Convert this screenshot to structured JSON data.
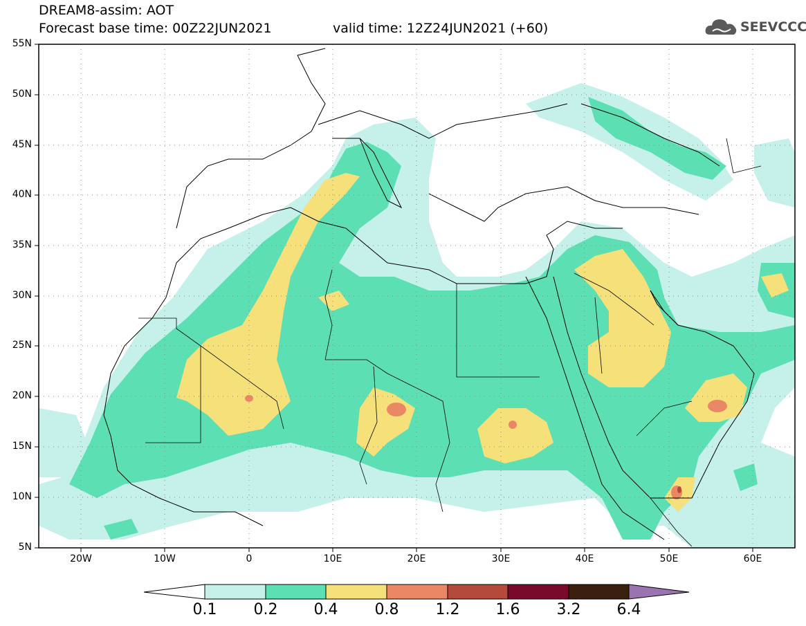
{
  "header": {
    "title_line1": "DREAM8-assim: AOT",
    "title_line2": "Forecast base time: 00Z22JUN2021",
    "valid_time": "valid time: 12Z24JUN2021 (+60)"
  },
  "logo": {
    "text": "SEEVCCC",
    "icon": "cloud-icon"
  },
  "map": {
    "lat_labels": [
      "55N",
      "50N",
      "45N",
      "40N",
      "35N",
      "30N",
      "25N",
      "20N",
      "15N",
      "10N",
      "5N"
    ],
    "lon_labels": [
      "20W",
      "10W",
      "0",
      "10E",
      "20E",
      "30E",
      "40E",
      "50E",
      "60E"
    ],
    "lat_range": [
      5,
      55
    ],
    "lon_range": [
      -25,
      65
    ],
    "grid": "dotted"
  },
  "colorbar": {
    "levels": [
      "0.1",
      "0.2",
      "0.4",
      "0.8",
      "1.2",
      "1.6",
      "3.2",
      "6.4"
    ],
    "colors": [
      "#ffffff",
      "#c6f0ea",
      "#5ddfb4",
      "#f5e07a",
      "#ea8866",
      "#b44a3a",
      "#7a0a2a",
      "#3b2010",
      "#9a74b0"
    ]
  }
}
